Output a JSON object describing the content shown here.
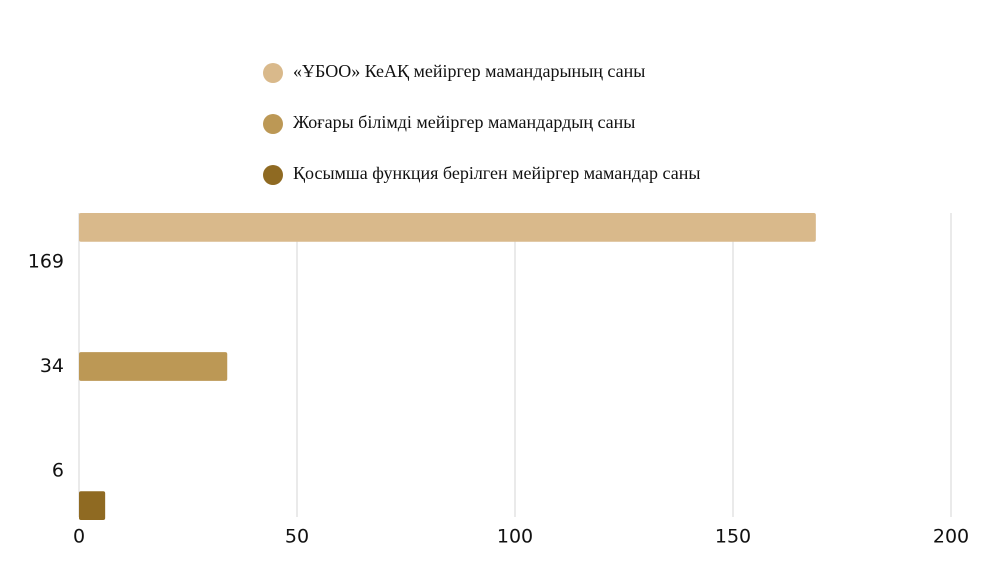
{
  "chart_data": {
    "type": "bar",
    "orientation": "horizontal",
    "categories": [
      "169",
      "34",
      "6"
    ],
    "series": [
      {
        "name": "«ҰБОО» КеАҚ мейіргер мамандарының саны",
        "color": "#d9b98b",
        "values": [
          169,
          null,
          null
        ]
      },
      {
        "name": "Жоғары білімді мейіргер мамандардың саны",
        "color": "#bc9855",
        "values": [
          null,
          34,
          null
        ]
      },
      {
        "name": "Қосымша функция берілген мейіргер мамандар саны",
        "color": "#8f6a22",
        "values": [
          null,
          null,
          6
        ]
      }
    ],
    "xlim": [
      0,
      200
    ],
    "xticks": [
      0,
      50,
      100,
      150,
      200
    ],
    "grid": true,
    "legend": "top"
  }
}
